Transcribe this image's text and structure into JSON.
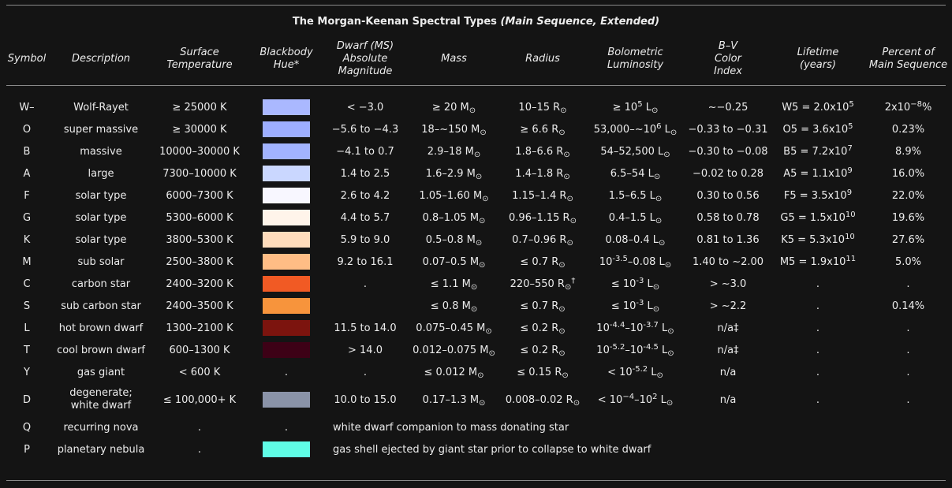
{
  "title_main": "The Morgan-Keenan Spectral Types",
  "title_paren": "(Main Sequence, Extended)",
  "headers": [
    [
      "Symbol"
    ],
    [
      "Description"
    ],
    [
      "Surface",
      "Temperature"
    ],
    [
      "Blackbody",
      "Hue*"
    ],
    [
      "Dwarf (MS)",
      "Absolute",
      "Magnitude"
    ],
    [
      "Mass"
    ],
    [
      "Radius"
    ],
    [
      "Bolometric",
      "Luminosity"
    ],
    [
      "B–V",
      "Color",
      "Index"
    ],
    [
      "Lifetime",
      "(years)"
    ],
    [
      "Percent of",
      "Main Sequence"
    ]
  ],
  "rows": [
    {
      "sym": "W–",
      "desc": [
        "Wolf-Rayet"
      ],
      "temp": "≥ 25000 K",
      "hue": "#aab8ff",
      "mag": "< −3.0",
      "mass": [
        [
          "t",
          "≥ 20 M"
        ],
        [
          "sub",
          "⊙"
        ]
      ],
      "radius": [
        [
          "t",
          "10–15 R"
        ],
        [
          "sub",
          "⊙"
        ]
      ],
      "lum": [
        [
          "t",
          "≥ 10"
        ],
        [
          "sup",
          "5"
        ],
        [
          "t",
          " L"
        ],
        [
          "sub",
          "⊙"
        ]
      ],
      "bv": "~−0.25",
      "life": [
        [
          "t",
          "W5 = 2.0x10"
        ],
        [
          "sup",
          "5"
        ]
      ],
      "pct": [
        [
          "t",
          "2x10"
        ],
        [
          "sup",
          "−8"
        ],
        [
          "t",
          "%"
        ]
      ]
    },
    {
      "sym": "O",
      "desc": [
        "super massive"
      ],
      "temp": "≥ 30000 K",
      "hue": "#9daeff",
      "mag": "−5.6 to −4.3",
      "mass": [
        [
          "t",
          "18–~150 M"
        ],
        [
          "sub",
          "⊙"
        ]
      ],
      "radius": [
        [
          "t",
          "≥ 6.6 R"
        ],
        [
          "sub",
          "⊙"
        ]
      ],
      "lum": [
        [
          "t",
          "53,000–~10"
        ],
        [
          "sup",
          "6"
        ],
        [
          "t",
          " L"
        ],
        [
          "sub",
          "⊙"
        ]
      ],
      "bv": "−0.33 to −0.31",
      "life": [
        [
          "t",
          "O5 = 3.6x10"
        ],
        [
          "sup",
          "5"
        ]
      ],
      "pct": [
        [
          "t",
          "0.23%"
        ]
      ]
    },
    {
      "sym": "B",
      "desc": [
        "massive"
      ],
      "temp": "10000–30000 K",
      "hue": "#a2b3ff",
      "mag": "−4.1 to 0.7",
      "mass": [
        [
          "t",
          "2.9–18 M"
        ],
        [
          "sub",
          "⊙"
        ]
      ],
      "radius": [
        [
          "t",
          "1.8–6.6 R"
        ],
        [
          "sub",
          "⊙"
        ]
      ],
      "lum": [
        [
          "t",
          "54–52,500 L"
        ],
        [
          "sub",
          "⊙"
        ]
      ],
      "bv": "−0.30 to −0.08",
      "life": [
        [
          "t",
          "B5 = 7.2x10"
        ],
        [
          "sup",
          "7"
        ]
      ],
      "pct": [
        [
          "t",
          "8.9%"
        ]
      ]
    },
    {
      "sym": "A",
      "desc": [
        "large"
      ],
      "temp": "7300–10000 K",
      "hue": "#cad7ff",
      "mag": "1.4 to 2.5",
      "mass": [
        [
          "t",
          "1.6–2.9 M"
        ],
        [
          "sub",
          "⊙"
        ]
      ],
      "radius": [
        [
          "t",
          "1.4–1.8 R"
        ],
        [
          "sub",
          "⊙"
        ]
      ],
      "lum": [
        [
          "t",
          "6.5–54 L"
        ],
        [
          "sub",
          "⊙"
        ]
      ],
      "bv": "−0.02 to 0.28",
      "life": [
        [
          "t",
          "A5 = 1.1x10"
        ],
        [
          "sup",
          "9"
        ]
      ],
      "pct": [
        [
          "t",
          "16.0%"
        ]
      ]
    },
    {
      "sym": "F",
      "desc": [
        "solar type"
      ],
      "temp": "6000–7300 K",
      "hue": "#f8f7ff",
      "mag": "2.6 to 4.2",
      "mass": [
        [
          "t",
          "1.05–1.60 M"
        ],
        [
          "sub",
          "⊙"
        ]
      ],
      "radius": [
        [
          "t",
          "1.15–1.4 R"
        ],
        [
          "sub",
          "⊙"
        ]
      ],
      "lum": [
        [
          "t",
          "1.5–6.5 L"
        ],
        [
          "sub",
          "⊙"
        ]
      ],
      "bv": "0.30 to 0.56",
      "life": [
        [
          "t",
          "F5 = 3.5x10"
        ],
        [
          "sup",
          "9"
        ]
      ],
      "pct": [
        [
          "t",
          "22.0%"
        ]
      ]
    },
    {
      "sym": "G",
      "desc": [
        "solar type"
      ],
      "temp": "5300–6000 K",
      "hue": "#fff4ea",
      "mag": "4.4 to 5.7",
      "mass": [
        [
          "t",
          "0.8–1.05 M"
        ],
        [
          "sub",
          "⊙"
        ]
      ],
      "radius": [
        [
          "t",
          "0.96–1.15 R"
        ],
        [
          "sub",
          "⊙"
        ]
      ],
      "lum": [
        [
          "t",
          "0.4–1.5 L"
        ],
        [
          "sub",
          "⊙"
        ]
      ],
      "bv": "0.58 to 0.78",
      "life": [
        [
          "t",
          "G5 = 1.5x10"
        ],
        [
          "sup",
          "10"
        ]
      ],
      "pct": [
        [
          "t",
          "19.6%"
        ]
      ]
    },
    {
      "sym": "K",
      "desc": [
        "solar type"
      ],
      "temp": "3800–5300 K",
      "hue": "#ffdcbc",
      "mag": "5.9 to 9.0",
      "mass": [
        [
          "t",
          "0.5–0.8 M"
        ],
        [
          "sub",
          "⊙"
        ]
      ],
      "radius": [
        [
          "t",
          "0.7–0.96 R"
        ],
        [
          "sub",
          "⊙"
        ]
      ],
      "lum": [
        [
          "t",
          "0.08–0.4 L"
        ],
        [
          "sub",
          "⊙"
        ]
      ],
      "bv": "0.81 to 1.36",
      "life": [
        [
          "t",
          "K5 = 5.3x10"
        ],
        [
          "sup",
          "10"
        ]
      ],
      "pct": [
        [
          "t",
          "27.6%"
        ]
      ]
    },
    {
      "sym": "M",
      "desc": [
        "sub solar"
      ],
      "temp": "2500–3800 K",
      "hue": "#ffbd85",
      "mag": "9.2 to 16.1",
      "mass": [
        [
          "t",
          "0.07–0.5 M"
        ],
        [
          "sub",
          "⊙"
        ]
      ],
      "radius": [
        [
          "t",
          "≤ 0.7 R"
        ],
        [
          "sub",
          "⊙"
        ]
      ],
      "lum": [
        [
          "t",
          "10"
        ],
        [
          "sup",
          "-3.5"
        ],
        [
          "t",
          "–0.08 L"
        ],
        [
          "sub",
          "⊙"
        ]
      ],
      "bv": "1.40 to ~2.00",
      "life": [
        [
          "t",
          "M5 = 1.9x10"
        ],
        [
          "sup",
          "11"
        ]
      ],
      "pct": [
        [
          "t",
          "5.0%"
        ]
      ]
    },
    {
      "sym": "C",
      "desc": [
        "carbon star"
      ],
      "temp": "2400–3200 K",
      "hue": "#f15a24",
      "mag": ".",
      "mass": [
        [
          "t",
          "≤ 1.1 M"
        ],
        [
          "sub",
          "⊙"
        ]
      ],
      "radius": [
        [
          "t",
          "220–550 R"
        ],
        [
          "sub",
          "⊙"
        ],
        [
          "sup",
          "†"
        ]
      ],
      "lum": [
        [
          "t",
          "≤ 10"
        ],
        [
          "sup",
          "-3"
        ],
        [
          "t",
          " L"
        ],
        [
          "sub",
          "⊙"
        ]
      ],
      "bv": "> ~3.0",
      "life": [
        [
          "t",
          "."
        ]
      ],
      "pct": [
        [
          "t",
          "."
        ]
      ]
    },
    {
      "sym": "S",
      "desc": [
        "sub carbon star"
      ],
      "temp": "2400–3500 K",
      "hue": "#f7943c",
      "mag": "",
      "mass": [
        [
          "t",
          "≤ 0.8 M"
        ],
        [
          "sub",
          "⊙"
        ]
      ],
      "radius": [
        [
          "t",
          "≤ 0.7 R"
        ],
        [
          "sub",
          "⊙"
        ]
      ],
      "lum": [
        [
          "t",
          "≤ 10"
        ],
        [
          "sup",
          "-3"
        ],
        [
          "t",
          " L"
        ],
        [
          "sub",
          "⊙"
        ]
      ],
      "bv": "> ~2.2",
      "life": [
        [
          "t",
          "."
        ]
      ],
      "pct": [
        [
          "t",
          "0.14%"
        ]
      ]
    },
    {
      "sym": "L",
      "desc": [
        "hot brown dwarf"
      ],
      "temp": "1300–2100 K",
      "hue": "#7c140e",
      "mag": "11.5 to 14.0",
      "mass": [
        [
          "t",
          "0.075–0.45 M"
        ],
        [
          "sub",
          "⊙"
        ]
      ],
      "radius": [
        [
          "t",
          "≤ 0.2 R"
        ],
        [
          "sub",
          "⊙"
        ]
      ],
      "lum": [
        [
          "t",
          "10"
        ],
        [
          "sup",
          "-4.4"
        ],
        [
          "t",
          "–10"
        ],
        [
          "sup",
          "-3.7"
        ],
        [
          "t",
          " L"
        ],
        [
          "sub",
          "⊙"
        ]
      ],
      "bv": "n/a‡",
      "life": [
        [
          "t",
          "."
        ]
      ],
      "pct": [
        [
          "t",
          "."
        ]
      ]
    },
    {
      "sym": "T",
      "desc": [
        "cool brown dwarf"
      ],
      "temp": "600–1300 K",
      "hue": "#3d0116",
      "mag": "> 14.0",
      "mass": [
        [
          "t",
          "0.012–0.075 M"
        ],
        [
          "sub",
          "⊙"
        ]
      ],
      "radius": [
        [
          "t",
          "≤ 0.2 R"
        ],
        [
          "sub",
          "⊙"
        ]
      ],
      "lum": [
        [
          "t",
          "10"
        ],
        [
          "sup",
          "-5.2"
        ],
        [
          "t",
          "–10"
        ],
        [
          "sup",
          "-4.5"
        ],
        [
          "t",
          " L"
        ],
        [
          "sub",
          "⊙"
        ]
      ],
      "bv": "n/a‡",
      "life": [
        [
          "t",
          "."
        ]
      ],
      "pct": [
        [
          "t",
          "."
        ]
      ]
    },
    {
      "sym": "Y",
      "desc": [
        "gas giant"
      ],
      "temp": "< 600 K",
      "hue": "",
      "mag": ".",
      "mass": [
        [
          "t",
          "≤ 0.012 M"
        ],
        [
          "sub",
          "⊙"
        ]
      ],
      "radius": [
        [
          "t",
          "≤ 0.15 R"
        ],
        [
          "sub",
          "⊙"
        ]
      ],
      "lum": [
        [
          "t",
          "< 10"
        ],
        [
          "sup",
          "-5.2"
        ],
        [
          "t",
          " L"
        ],
        [
          "sub",
          "⊙"
        ]
      ],
      "bv": "n/a",
      "life": [
        [
          "t",
          "."
        ]
      ],
      "pct": [
        [
          "t",
          "."
        ]
      ]
    },
    {
      "sym": "D",
      "desc": [
        "degenerate;",
        "white dwarf"
      ],
      "temp": "≤ 100,000+ K",
      "hue": "#8a93a8",
      "mag": "10.0 to 15.0",
      "mass": [
        [
          "t",
          "0.17–1.3 M"
        ],
        [
          "sub",
          "⊙"
        ]
      ],
      "radius": [
        [
          "t",
          "0.008–0.02 R"
        ],
        [
          "sub",
          "⊙"
        ]
      ],
      "lum": [
        [
          "t",
          "< 10"
        ],
        [
          "sup",
          "−4"
        ],
        [
          "t",
          "–10"
        ],
        [
          "sup",
          "2"
        ],
        [
          "t",
          " L"
        ],
        [
          "sub",
          "⊙"
        ]
      ],
      "bv": "n/a",
      "life": [
        [
          "t",
          "."
        ]
      ],
      "pct": [
        [
          "t",
          "."
        ]
      ]
    },
    {
      "sym": "Q",
      "desc": [
        "recurring nova"
      ],
      "temp": ".",
      "hue": "",
      "hue_text": ".",
      "note": "white dwarf companion to mass donating star"
    },
    {
      "sym": "P",
      "desc": [
        "planetary nebula"
      ],
      "temp": ".",
      "hue": "#5ffde6",
      "note": "gas shell ejected by giant star prior to collapse to white dwarf"
    }
  ]
}
